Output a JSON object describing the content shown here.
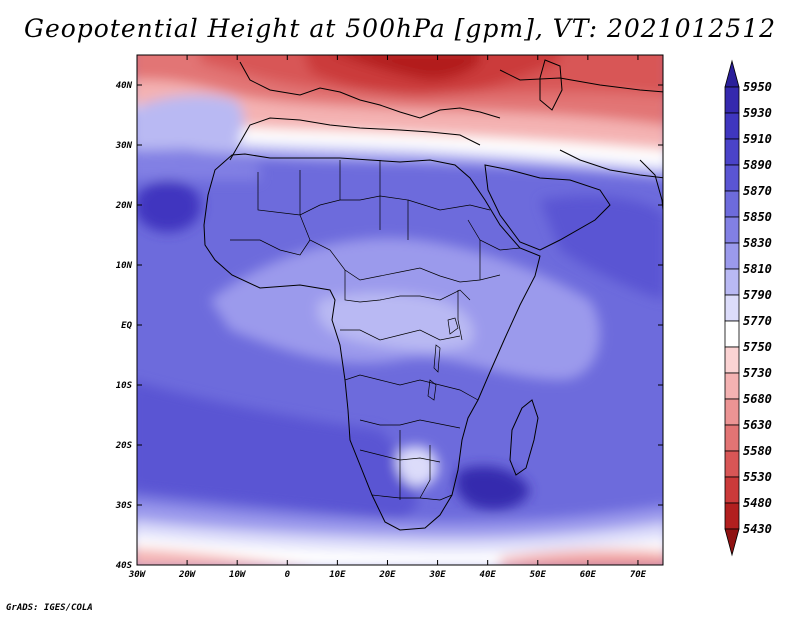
{
  "title": "Geopotential Height at 500hPa [gpm], VT: 2021012512",
  "credit": "GrADS: IGES/COLA",
  "map": {
    "region": "Africa and surrounding oceans",
    "lon_range": [
      -30,
      75
    ],
    "lat_range": [
      -40,
      45
    ],
    "lat_ticks": [
      {
        "label": "40N",
        "value": 40
      },
      {
        "label": "30N",
        "value": 30
      },
      {
        "label": "20N",
        "value": 20
      },
      {
        "label": "10N",
        "value": 10
      },
      {
        "label": "EQ",
        "value": 0
      },
      {
        "label": "10S",
        "value": -10
      },
      {
        "label": "20S",
        "value": -20
      },
      {
        "label": "30S",
        "value": -30
      },
      {
        "label": "40S",
        "value": -40
      }
    ],
    "lon_ticks": [
      {
        "label": "30W",
        "value": -30
      },
      {
        "label": "20W",
        "value": -20
      },
      {
        "label": "10W",
        "value": -10
      },
      {
        "label": "0",
        "value": 0
      },
      {
        "label": "10E",
        "value": 10
      },
      {
        "label": "20E",
        "value": 20
      },
      {
        "label": "30E",
        "value": 30
      },
      {
        "label": "40E",
        "value": 40
      },
      {
        "label": "50E",
        "value": 50
      },
      {
        "label": "60E",
        "value": 60
      },
      {
        "label": "70E",
        "value": 70
      }
    ]
  },
  "colorbar": {
    "levels": [
      {
        "label": "5950",
        "color": "#2a1f9a"
      },
      {
        "label": "5930",
        "color": "#3529ae"
      },
      {
        "label": "5910",
        "color": "#3f36bf"
      },
      {
        "label": "5890",
        "color": "#4a43c9"
      },
      {
        "label": "5870",
        "color": "#5a55d3"
      },
      {
        "label": "5850",
        "color": "#6d6bdc"
      },
      {
        "label": "5830",
        "color": "#8280e4"
      },
      {
        "label": "5810",
        "color": "#9b9aec"
      },
      {
        "label": "5790",
        "color": "#b9b9f3"
      },
      {
        "label": "5770",
        "color": "#dcdcfa"
      },
      {
        "label": "5750",
        "color": "#ffffff"
      },
      {
        "label": "5730",
        "color": "#fbd3d3"
      },
      {
        "label": "5680",
        "color": "#f4b2b2"
      },
      {
        "label": "5630",
        "color": "#ec9494"
      },
      {
        "label": "5580",
        "color": "#e27474"
      },
      {
        "label": "5530",
        "color": "#d85656"
      },
      {
        "label": "5480",
        "color": "#cb3a3a"
      },
      {
        "label": "5430",
        "color": "#b21f1f"
      },
      {
        "label": "",
        "color": "#8f1212"
      }
    ]
  }
}
